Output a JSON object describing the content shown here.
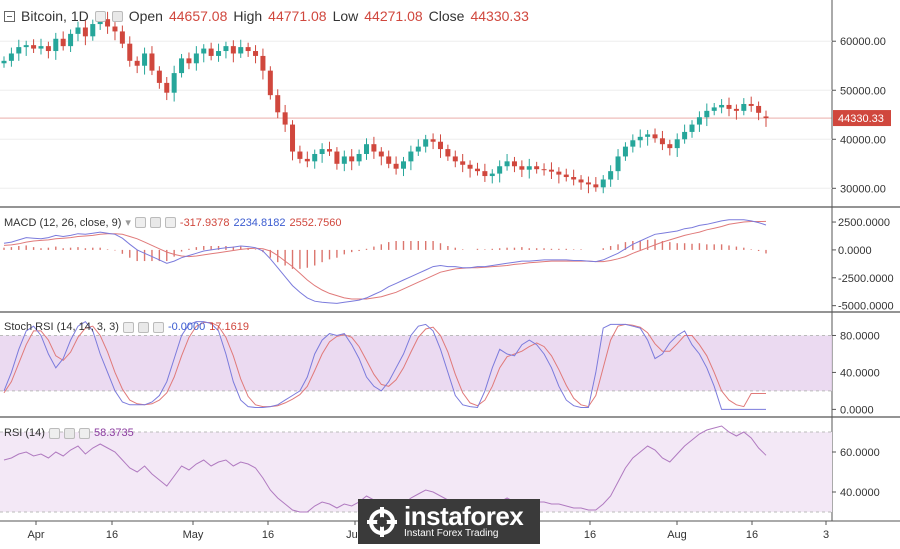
{
  "header": {
    "symbol": "Bitcoin",
    "interval": "1D",
    "open_label": "Open",
    "open_value": "44657.08",
    "high_label": "High",
    "high_value": "44771.08",
    "low_label": "Low",
    "low_value": "44271.08",
    "close_label": "Close",
    "close_value": "44330.33"
  },
  "macd_title": {
    "label": "MACD (12, 26, close, 9)",
    "v1": "-317.9378",
    "v2": "2234.8182",
    "v3": "2552.7560"
  },
  "stoch_title": {
    "label": "Stoch RSI (14, 14, 3, 3)",
    "v1": "-0.0000",
    "v2": "17.1619"
  },
  "rsi_title": {
    "label": "RSI (14)",
    "v1": "58.3735"
  },
  "watermark": {
    "brand": "instaforex",
    "tagline": "Instant Forex Trading"
  },
  "colors": {
    "up": "#26a69a",
    "down": "#d0473d",
    "macd": "#7b7bdc",
    "signal": "#e07a7a",
    "stoch_k": "#7b7bdc",
    "stoch_d": "#e07a7a",
    "rsi": "#b07ac0",
    "band": "#e8d4ee"
  },
  "chart_data": [
    {
      "type": "candlestick",
      "title": "Bitcoin, 1D",
      "x_tick_labels": [
        "Apr",
        "16",
        "May",
        "16",
        "Jun",
        "16",
        "Aug",
        "16",
        "3"
      ],
      "y_tick_labels": [
        "60000.00",
        "50000.00",
        "40000.00",
        "30000.00"
      ],
      "ylim": [
        26800,
        68000
      ],
      "last_price_label": "44330.33",
      "close_values": [
        56000,
        57500,
        58800,
        59200,
        58500,
        59000,
        58000,
        60500,
        59000,
        61500,
        62800,
        61000,
        63500,
        64500,
        63000,
        62000,
        59500,
        56000,
        55000,
        57500,
        54000,
        51500,
        49500,
        53500,
        56500,
        55500,
        57500,
        58500,
        57000,
        58000,
        59000,
        57500,
        58800,
        58000,
        57000,
        54000,
        49000,
        45500,
        43000,
        37500,
        36000,
        35500,
        37000,
        38000,
        37500,
        35000,
        36500,
        35500,
        37000,
        39000,
        37500,
        36500,
        35000,
        34000,
        35500,
        37500,
        38500,
        40000,
        39500,
        38000,
        36500,
        35500,
        34800,
        34000,
        33500,
        32500,
        33000,
        34500,
        35500,
        34500,
        33800,
        34500,
        33900,
        33800,
        33400,
        32800,
        32300,
        31800,
        31200,
        30800,
        30200,
        31800,
        33500,
        36500,
        38500,
        39800,
        40500,
        41000,
        40200,
        39000,
        38200,
        40000,
        41500,
        43000,
        44500,
        45800,
        46500,
        47000,
        46200,
        45800,
        47200,
        46800,
        45400,
        44330
      ],
      "open_values": [
        55500,
        56000,
        57500,
        58800,
        59200,
        58500,
        59000,
        58000,
        60500,
        59000,
        61500,
        62800,
        61000,
        63500,
        64500,
        63000,
        62000,
        59500,
        56000,
        55000,
        57500,
        54000,
        51500,
        49500,
        53500,
        56500,
        55500,
        57500,
        58500,
        57000,
        58000,
        59000,
        57500,
        58800,
        58000,
        57000,
        54000,
        49000,
        45500,
        43000,
        37500,
        36000,
        35500,
        37000,
        38000,
        37500,
        35000,
        36500,
        35500,
        37000,
        39000,
        37500,
        36500,
        35000,
        34000,
        35500,
        37500,
        38500,
        40000,
        39500,
        38000,
        36500,
        35500,
        34800,
        34000,
        33500,
        32500,
        33000,
        34500,
        35500,
        34500,
        33800,
        34500,
        33900,
        33800,
        33400,
        32800,
        32300,
        31800,
        31200,
        30800,
        30200,
        31800,
        33500,
        36500,
        38500,
        39800,
        40500,
        41000,
        40200,
        39000,
        38200,
        40000,
        41500,
        43000,
        44500,
        45800,
        46500,
        47000,
        46200,
        45800,
        47200,
        46800,
        44657
      ]
    },
    {
      "type": "line",
      "title": "MACD (12, 26, close, 9)",
      "y_tick_labels": [
        "2500.0000",
        "0.0000",
        "-2500.0000",
        "-5000.0000"
      ],
      "ylim": [
        -5300,
        3400
      ],
      "series": [
        {
          "name": "MACD",
          "values": [
            600,
            700,
            900,
            1100,
            1050,
            1000,
            1100,
            1300,
            1200,
            1300,
            1450,
            1400,
            1500,
            1600,
            1500,
            1400,
            1050,
            500,
            0,
            -300,
            -600,
            -900,
            -1200,
            -1000,
            -700,
            -500,
            -300,
            -100,
            0,
            100,
            200,
            250,
            350,
            300,
            200,
            -100,
            -800,
            -1600,
            -2400,
            -3200,
            -3800,
            -4300,
            -4600,
            -4700,
            -4750,
            -4800,
            -4700,
            -4600,
            -4500,
            -4300,
            -4000,
            -3700,
            -3300,
            -3000,
            -2700,
            -2400,
            -2100,
            -1800,
            -1500,
            -1400,
            -1500,
            -1500,
            -1600,
            -1600,
            -1500,
            -1500,
            -1400,
            -1300,
            -1200,
            -1100,
            -1000,
            -1000,
            -950,
            -900,
            -900,
            -900,
            -900,
            -950,
            -950,
            -1000,
            -1050,
            -900,
            -600,
            -300,
            100,
            500,
            800,
            1100,
            1400,
            1500,
            1600,
            1700,
            1900,
            2000,
            2200,
            2300,
            2450,
            2600,
            2700,
            2700,
            2700,
            2600,
            2450,
            2234.8182
          ]
        },
        {
          "name": "Signal",
          "values": [
            400,
            450,
            550,
            700,
            800,
            850,
            900,
            1000,
            1050,
            1100,
            1200,
            1250,
            1300,
            1400,
            1450,
            1450,
            1400,
            1200,
            1000,
            700,
            400,
            100,
            -200,
            -400,
            -550,
            -600,
            -550,
            -450,
            -350,
            -250,
            -150,
            -50,
            50,
            120,
            150,
            100,
            -100,
            -500,
            -1000,
            -1500,
            -2100,
            -2700,
            -3200,
            -3600,
            -3900,
            -4100,
            -4300,
            -4400,
            -4400,
            -4400,
            -4300,
            -4200,
            -4000,
            -3800,
            -3500,
            -3200,
            -2900,
            -2600,
            -2300,
            -2000,
            -1850,
            -1700,
            -1650,
            -1600,
            -1600,
            -1550,
            -1500,
            -1450,
            -1400,
            -1300,
            -1250,
            -1150,
            -1100,
            -1050,
            -1000,
            -1000,
            -1000,
            -1000,
            -1000,
            -1000,
            -1050,
            -1050,
            -950,
            -800,
            -600,
            -300,
            -50,
            200,
            450,
            700,
            900,
            1100,
            1300,
            1450,
            1600,
            1800,
            1950,
            2100,
            2300,
            2400,
            2500,
            2550,
            2550,
            2552.756
          ]
        },
        {
          "name": "Histogram",
          "values": [
            200,
            250,
            350,
            400,
            250,
            150,
            200,
            300,
            150,
            200,
            250,
            150,
            200,
            200,
            50,
            -50,
            -350,
            -700,
            -1000,
            -1000,
            -1000,
            -1000,
            -1000,
            -600,
            -150,
            100,
            250,
            350,
            350,
            350,
            350,
            300,
            300,
            180,
            50,
            -200,
            -700,
            -1100,
            -1400,
            -1700,
            -1700,
            -1600,
            -1400,
            -1100,
            -850,
            -700,
            -400,
            -200,
            -100,
            100,
            300,
            500,
            700,
            800,
            800,
            800,
            800,
            800,
            800,
            600,
            350,
            200,
            50,
            0,
            100,
            50,
            100,
            150,
            200,
            200,
            250,
            150,
            150,
            150,
            100,
            100,
            100,
            50,
            50,
            0,
            0,
            150,
            350,
            500,
            700,
            800,
            850,
            900,
            950,
            800,
            700,
            600,
            600,
            550,
            600,
            500,
            500,
            500,
            400,
            300,
            200,
            50,
            -100,
            -317.9378
          ]
        }
      ]
    },
    {
      "type": "line",
      "title": "Stoch RSI (14, 14, 3, 3)",
      "y_tick_labels": [
        "80.0000",
        "40.0000",
        "0.0000"
      ],
      "ylim": [
        -5,
        100
      ],
      "series": [
        {
          "name": "%K",
          "values": [
            20,
            40,
            65,
            85,
            90,
            80,
            60,
            45,
            55,
            75,
            90,
            95,
            85,
            60,
            40,
            20,
            8,
            5,
            5,
            5,
            8,
            15,
            30,
            55,
            80,
            92,
            95,
            95,
            93,
            85,
            60,
            30,
            10,
            3,
            2,
            2,
            3,
            5,
            10,
            15,
            20,
            35,
            60,
            75,
            82,
            80,
            82,
            70,
            55,
            35,
            25,
            20,
            30,
            45,
            60,
            80,
            90,
            92,
            85,
            65,
            40,
            15,
            5,
            3,
            2,
            20,
            45,
            65,
            60,
            58,
            70,
            75,
            70,
            60,
            45,
            25,
            10,
            4,
            2,
            2,
            40,
            88,
            92,
            92,
            92,
            90,
            88,
            75,
            55,
            60,
            72,
            80,
            85,
            70,
            60,
            45,
            25,
            0,
            0,
            0,
            0,
            0,
            0,
            -0.0
          ]
        },
        {
          "name": "%D",
          "values": [
            18,
            30,
            50,
            70,
            85,
            85,
            75,
            58,
            53,
            62,
            78,
            88,
            90,
            80,
            62,
            40,
            22,
            10,
            6,
            5,
            6,
            10,
            18,
            35,
            58,
            78,
            90,
            94,
            94,
            90,
            78,
            58,
            33,
            14,
            5,
            3,
            3,
            4,
            7,
            11,
            16,
            25,
            42,
            60,
            73,
            79,
            81,
            78,
            68,
            53,
            38,
            27,
            25,
            32,
            45,
            62,
            78,
            87,
            89,
            80,
            62,
            38,
            18,
            7,
            4,
            10,
            25,
            45,
            57,
            60,
            63,
            68,
            72,
            68,
            58,
            43,
            26,
            12,
            5,
            3,
            15,
            45,
            75,
            90,
            92,
            91,
            89,
            83,
            71,
            63,
            63,
            71,
            80,
            80,
            70,
            58,
            40,
            20,
            10,
            5,
            3,
            17.1619,
            17.1619,
            17.1619
          ]
        }
      ]
    },
    {
      "type": "line",
      "title": "RSI (14)",
      "y_tick_labels": [
        "60.0000",
        "40.0000"
      ],
      "ylim": [
        27,
        75
      ],
      "series": [
        {
          "name": "RSI",
          "values": [
            56,
            57,
            59,
            60,
            58,
            59,
            57,
            60,
            58,
            61,
            63,
            59,
            62,
            64,
            62,
            60,
            56,
            52,
            50,
            53,
            49,
            46,
            43,
            48,
            53,
            51,
            54,
            56,
            53,
            55,
            56,
            53,
            55,
            54,
            52,
            47,
            41,
            37,
            34,
            31,
            30,
            30,
            33,
            35,
            34,
            32,
            34,
            33,
            35,
            38,
            36,
            35,
            33,
            32,
            34,
            37,
            39,
            41,
            40,
            38,
            36,
            34,
            34,
            33,
            33,
            32,
            33,
            35,
            37,
            35,
            34,
            36,
            35,
            35,
            34,
            34,
            33,
            32,
            32,
            31,
            31,
            34,
            38,
            45,
            52,
            57,
            60,
            63,
            61,
            57,
            55,
            59,
            63,
            66,
            69,
            71,
            72,
            73,
            70,
            68,
            70,
            67,
            62,
            58.3735
          ]
        }
      ]
    }
  ]
}
